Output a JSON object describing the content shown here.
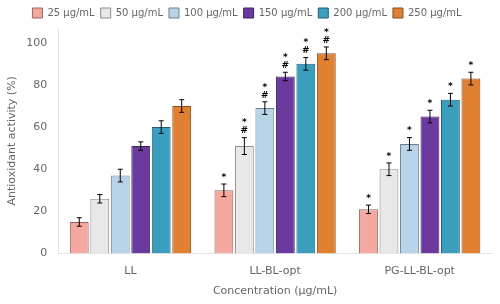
{
  "chart_data": {
    "type": "bar",
    "xlabel": "Concentration (μg/mL)",
    "ylabel": "Antioxidant activity (%)",
    "categories": [
      "LL",
      "LL-BL-opt",
      "PG-LL-BL-opt"
    ],
    "series": [
      {
        "name": "25 μg/mL",
        "color": "#f4a8a0",
        "values": [
          15,
          30,
          21
        ],
        "errors": [
          2,
          3,
          2
        ]
      },
      {
        "name": "50 μg/mL",
        "color": "#e8e8e8",
        "values": [
          26,
          51,
          40
        ],
        "errors": [
          2,
          4,
          3
        ]
      },
      {
        "name": "100 μg/mL",
        "color": "#b8d4e8",
        "values": [
          37,
          69,
          52
        ],
        "errors": [
          3,
          3,
          3
        ]
      },
      {
        "name": "150 μg/mL",
        "color": "#6b3a9e",
        "values": [
          51,
          84,
          65
        ],
        "errors": [
          2,
          2,
          3
        ]
      },
      {
        "name": "200 μg/mL",
        "color": "#3a9fbf",
        "values": [
          60,
          90,
          73
        ],
        "errors": [
          3,
          3,
          3
        ]
      },
      {
        "name": "250 μg/mL",
        "color": "#e08030",
        "values": [
          70,
          95,
          83
        ],
        "errors": [
          3,
          3,
          3
        ]
      }
    ],
    "annotations": [
      {
        "category": "LL-BL-opt",
        "series": "25 μg/mL",
        "text": "*"
      },
      {
        "category": "LL-BL-opt",
        "series": "50 μg/mL",
        "text": "*\n#"
      },
      {
        "category": "LL-BL-opt",
        "series": "100 μg/mL",
        "text": "*\n#"
      },
      {
        "category": "LL-BL-opt",
        "series": "150 μg/mL",
        "text": "*\n#"
      },
      {
        "category": "LL-BL-opt",
        "series": "200 μg/mL",
        "text": "*\n#"
      },
      {
        "category": "LL-BL-opt",
        "series": "250 μg/mL",
        "text": "*\n#"
      },
      {
        "category": "PG-LL-BL-opt",
        "series": "25 μg/mL",
        "text": "*"
      },
      {
        "category": "PG-LL-BL-opt",
        "series": "50 μg/mL",
        "text": "*"
      },
      {
        "category": "PG-LL-BL-opt",
        "series": "100 μg/mL",
        "text": "*"
      },
      {
        "category": "PG-LL-BL-opt",
        "series": "150 μg/mL",
        "text": "*"
      },
      {
        "category": "PG-LL-BL-opt",
        "series": "200 μg/mL",
        "text": "*"
      },
      {
        "category": "PG-LL-BL-opt",
        "series": "250 μg/mL",
        "text": "*"
      }
    ],
    "ylim": [
      0,
      107
    ],
    "yticks": [
      0,
      20,
      40,
      60,
      80,
      100
    ],
    "grid": false,
    "legend": "top"
  }
}
